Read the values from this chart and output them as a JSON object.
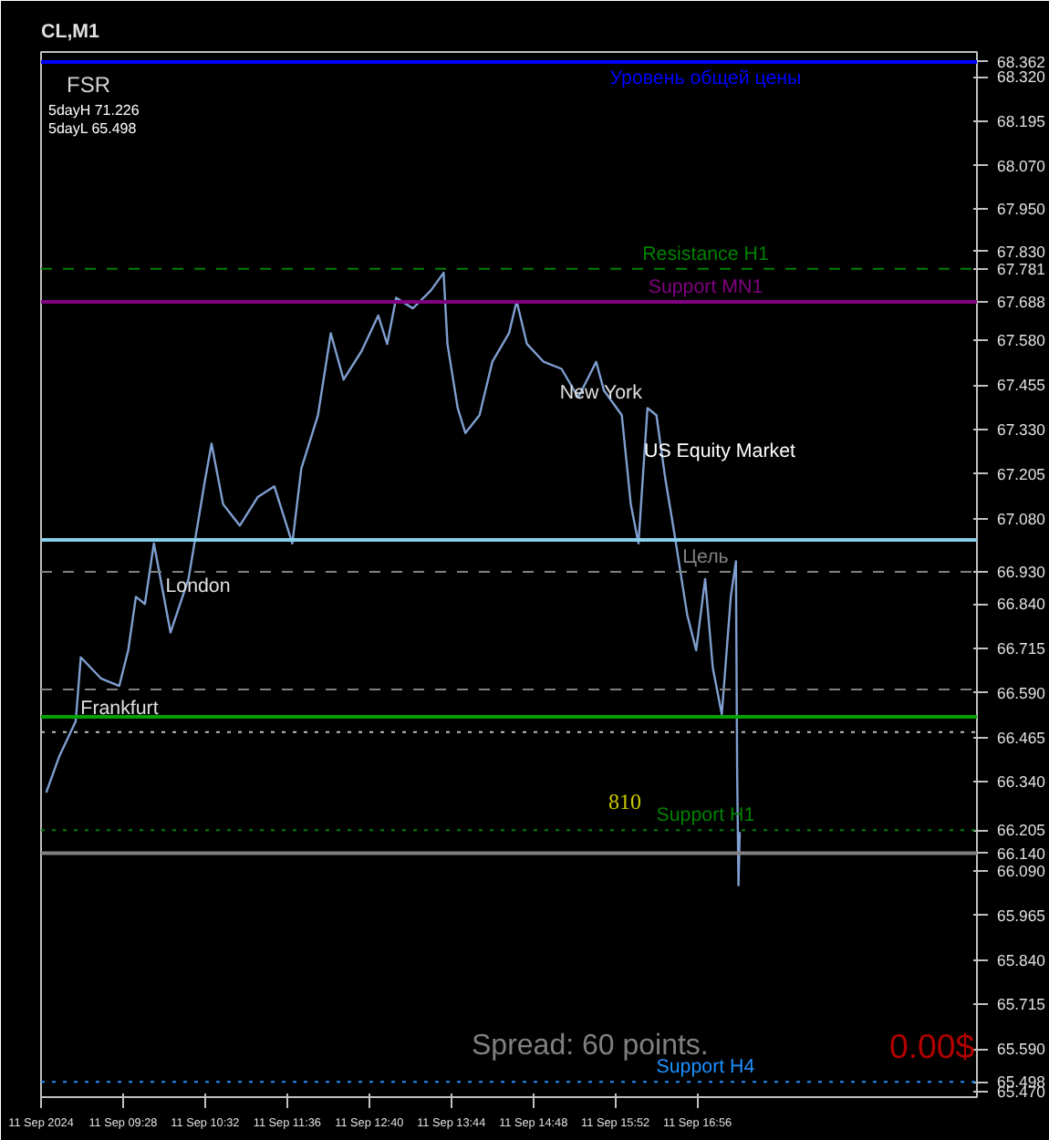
{
  "chart_data": {
    "type": "line",
    "title": "CL,M1",
    "x": [
      "2024-09-11T08:28",
      "2024-09-11T08:38",
      "2024-09-11T08:51",
      "2024-09-11T08:55",
      "2024-09-11T09:11",
      "2024-09-11T09:25",
      "2024-09-11T09:32",
      "2024-09-11T09:38",
      "2024-09-11T09:45",
      "2024-09-11T09:52",
      "2024-09-11T10:05",
      "2024-09-11T10:19",
      "2024-09-11T10:26",
      "2024-09-11T10:32",
      "2024-09-11T10:37",
      "2024-09-11T10:46",
      "2024-09-11T10:59",
      "2024-09-11T11:13",
      "2024-09-11T11:26",
      "2024-09-11T11:40",
      "2024-09-11T11:47",
      "2024-09-11T12:00",
      "2024-09-11T12:10",
      "2024-09-11T12:20",
      "2024-09-11T12:34",
      "2024-09-11T12:47",
      "2024-09-11T12:54",
      "2024-09-11T13:01",
      "2024-09-11T13:14",
      "2024-09-11T13:28",
      "2024-09-11T13:38",
      "2024-09-11T13:41",
      "2024-09-11T13:49",
      "2024-09-11T13:55",
      "2024-09-11T14:06",
      "2024-09-11T14:16",
      "2024-09-11T14:29",
      "2024-09-11T14:35",
      "2024-09-11T14:43",
      "2024-09-11T14:56",
      "2024-09-11T15:10",
      "2024-09-11T15:23",
      "2024-09-11T15:37",
      "2024-09-11T15:43",
      "2024-09-11T15:57",
      "2024-09-11T16:04",
      "2024-09-11T16:10",
      "2024-09-11T16:17",
      "2024-09-11T16:24",
      "2024-09-11T16:31",
      "2024-09-11T16:37",
      "2024-09-11T16:48",
      "2024-09-11T16:55",
      "2024-09-11T17:02",
      "2024-09-11T17:08",
      "2024-09-11T17:15",
      "2024-09-11T17:22",
      "2024-09-11T17:26",
      "2024-09-11T17:27",
      "2024-09-11T17:28",
      "2024-09-11T17:29"
    ],
    "series": [
      {
        "color": "#7f9fd0",
        "values": [
          66.31,
          66.41,
          66.51,
          66.69,
          66.63,
          66.61,
          66.71,
          66.86,
          66.84,
          67.01,
          66.76,
          66.91,
          67.06,
          67.19,
          67.29,
          67.12,
          67.06,
          67.14,
          67.17,
          67.01,
          67.22,
          67.37,
          67.6,
          67.47,
          67.55,
          67.65,
          67.57,
          67.7,
          67.67,
          67.72,
          67.77,
          67.57,
          67.39,
          67.32,
          67.37,
          67.52,
          67.6,
          67.69,
          67.57,
          67.52,
          67.5,
          67.42,
          67.52,
          67.44,
          67.37,
          67.12,
          67.01,
          67.39,
          67.37,
          67.19,
          67.06,
          66.81,
          66.71,
          66.91,
          66.66,
          66.53,
          66.86,
          66.96,
          66.36,
          66.05,
          66.2
        ]
      }
    ],
    "xlim": [
      "2024-09-11T08:24",
      "2024-09-11T20:34"
    ],
    "xticks": [
      {
        "value": "2024-09-11T08:24",
        "label": "11 Sep 2024"
      },
      {
        "value": "2024-09-11T09:28",
        "label": "11 Sep 09:28"
      },
      {
        "value": "2024-09-11T10:32",
        "label": "11 Sep 10:32"
      },
      {
        "value": "2024-09-11T11:36",
        "label": "11 Sep 11:36"
      },
      {
        "value": "2024-09-11T12:40",
        "label": "11 Sep 12:40"
      },
      {
        "value": "2024-09-11T13:44",
        "label": "11 Sep 13:44"
      },
      {
        "value": "2024-09-11T14:48",
        "label": "11 Sep 14:48"
      },
      {
        "value": "2024-09-11T15:52",
        "label": "11 Sep 15:52"
      },
      {
        "value": "2024-09-11T16:56",
        "label": "11 Sep 16:56"
      }
    ],
    "ylim": [
      65.455,
      68.39
    ],
    "yticks": [
      {
        "value": 68.362,
        "label": "68.362"
      },
      {
        "value": 68.32,
        "label": "68.320"
      },
      {
        "value": 68.195,
        "label": "68.195"
      },
      {
        "value": 68.07,
        "label": "68.070"
      },
      {
        "value": 67.95,
        "label": "67.950"
      },
      {
        "value": 67.83,
        "label": "67.830"
      },
      {
        "value": 67.781,
        "label": "67.781"
      },
      {
        "value": 67.688,
        "label": "67.688"
      },
      {
        "value": 67.58,
        "label": "67.580"
      },
      {
        "value": 67.455,
        "label": "67.455"
      },
      {
        "value": 67.33,
        "label": "67.330"
      },
      {
        "value": 67.205,
        "label": "67.205"
      },
      {
        "value": 67.08,
        "label": "67.080"
      },
      {
        "value": 66.93,
        "label": "66.930"
      },
      {
        "value": 66.84,
        "label": "66.840"
      },
      {
        "value": 66.715,
        "label": "66.715"
      },
      {
        "value": 66.59,
        "label": "66.590"
      },
      {
        "value": 66.465,
        "label": "66.465"
      },
      {
        "value": 66.34,
        "label": "66.340"
      },
      {
        "value": 66.205,
        "label": "66.205"
      },
      {
        "value": 66.14,
        "label": "66.140"
      },
      {
        "value": 66.09,
        "label": "66.090"
      },
      {
        "value": 65.965,
        "label": "65.965"
      },
      {
        "value": 65.84,
        "label": "65.840"
      },
      {
        "value": 65.715,
        "label": "65.715"
      },
      {
        "value": 65.59,
        "label": "65.590"
      },
      {
        "value": 65.498,
        "label": "65.498"
      },
      {
        "value": 65.47,
        "label": "65.470"
      }
    ],
    "ref_lines": [
      {
        "axis": "y",
        "value": 68.362,
        "label": "Уровень общей цены",
        "color": "#0000ff",
        "line_style": "solid"
      },
      {
        "axis": "y",
        "value": 67.781,
        "label": "Resistance H1",
        "color": "#008000",
        "line_style": "dashed"
      },
      {
        "axis": "y",
        "value": 67.688,
        "label": "Support MN1",
        "color": "#800080",
        "line_style": "solid"
      },
      {
        "axis": "y",
        "value": 67.02,
        "color": "#87ceeb",
        "line_style": "solid"
      },
      {
        "axis": "y",
        "value": 66.93,
        "label": "Цель",
        "color": "#808080",
        "line_style": "dashed"
      },
      {
        "axis": "y",
        "value": 66.6,
        "color": "#808080",
        "line_style": "dashed"
      },
      {
        "axis": "y",
        "value": 66.523,
        "color": "#00a000",
        "line_style": "solid"
      },
      {
        "axis": "y",
        "value": 66.48,
        "color": "#c0c0c0",
        "line_style": "dotted"
      },
      {
        "axis": "y",
        "value": 66.205,
        "label": "Support H1",
        "color": "#008000",
        "line_style": "dotted"
      },
      {
        "axis": "y",
        "value": 66.14,
        "color": "#808080",
        "line_style": "solid"
      },
      {
        "axis": "y",
        "value": 65.498,
        "label": "Support H4",
        "color": "#1e90ff",
        "line_style": "dotted"
      }
    ],
    "annotations": [
      "FSR",
      "5dayH 71.226",
      "5dayL 65.498",
      "Spread: 60 points.",
      "0.00$",
      "New York",
      "US Equity Market",
      "London",
      "Frankfurt",
      "810"
    ],
    "grid": false,
    "marker": "none",
    "line_style": "solid"
  }
}
